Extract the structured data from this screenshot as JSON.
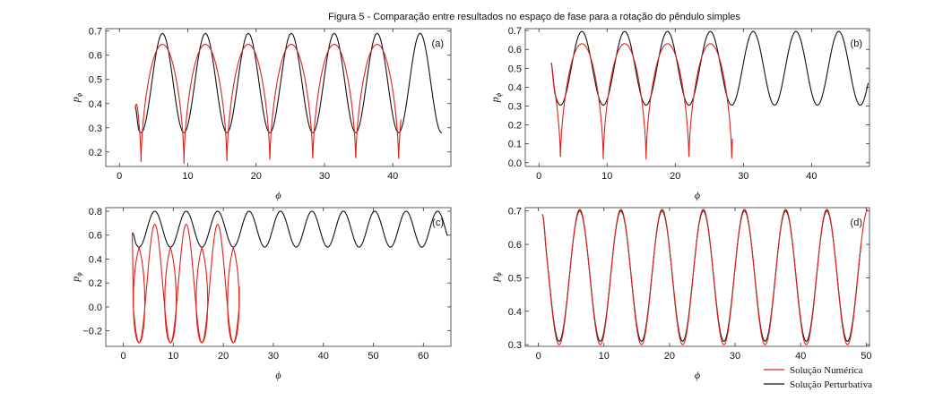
{
  "figure": {
    "title": "Figura 5 - Comparação entre resultados no espaço de fase para a rotação do pêndulo simples"
  },
  "legend": {
    "items": [
      {
        "label": "Solução Numérica",
        "color": "#e0201b"
      },
      {
        "label": "Solução Perturbativa",
        "color": "#111111"
      }
    ]
  },
  "chart_data": [
    {
      "type": "line",
      "panel": "(a)",
      "xlabel": "ϕ",
      "ylabel": "pϕ",
      "xlim": [
        -2,
        48.5
      ],
      "ylim": [
        0.14,
        0.71
      ],
      "xticks": [
        0,
        10,
        20,
        30,
        40
      ],
      "yticks": [
        0.2,
        0.3,
        0.4,
        0.5,
        0.6,
        0.7
      ],
      "series": [
        {
          "name": "Solução Perturbativa",
          "color": "#111111",
          "x_range": [
            2.3,
            47.2
          ],
          "peak_x": 6.3,
          "period": 6.283,
          "max": 0.69,
          "min": 0.28,
          "start": 0.39
        },
        {
          "name": "Solução Numérica",
          "color": "#e0201b",
          "x_range": [
            2.3,
            41.2
          ],
          "peak_x": 6.3,
          "period": 6.283,
          "max": 0.645,
          "min": 0.145,
          "start": 0.38
        }
      ]
    },
    {
      "type": "line",
      "panel": "(b)",
      "xlabel": "ϕ",
      "ylabel": "pϕ",
      "xlim": [
        -2,
        48.5
      ],
      "ylim": [
        -0.02,
        0.71
      ],
      "xticks": [
        0,
        10,
        20,
        30,
        40
      ],
      "yticks": [
        0.0,
        0.1,
        0.2,
        0.3,
        0.4,
        0.5,
        0.6,
        0.7
      ],
      "series": [
        {
          "name": "Solução Perturbativa",
          "color": "#111111",
          "x_range": [
            1.8,
            48.3
          ],
          "peak_x": 6.3,
          "period": 6.283,
          "max": 0.695,
          "min": 0.305,
          "start": 0.53
        },
        {
          "name": "Solução Numérica",
          "color": "#e0201b",
          "x_range": [
            1.8,
            28.4
          ],
          "peak_x": 6.3,
          "period": 6.283,
          "max": 0.63,
          "min": 0.0,
          "start": 0.53
        }
      ]
    },
    {
      "type": "line",
      "panel": "(c)",
      "xlabel": "ϕ",
      "ylabel": "pϕ",
      "xlim": [
        -3.5,
        65.5
      ],
      "ylim": [
        -0.33,
        0.83
      ],
      "xticks": [
        0,
        10,
        20,
        30,
        40,
        50,
        60
      ],
      "yticks": [
        -0.2,
        0.0,
        0.2,
        0.4,
        0.6,
        0.8
      ],
      "series": [
        {
          "name": "Solução Perturbativa",
          "color": "#111111",
          "x_range": [
            1.8,
            64.8
          ],
          "peak_x": 6.3,
          "period": 6.283,
          "max": 0.8,
          "min": 0.5,
          "start": 0.62
        },
        {
          "name": "Solução Numérica",
          "color": "#e0201b",
          "x_range": [
            1.8,
            23.2
          ],
          "peak_x": 6.3,
          "period": 6.283,
          "max": 0.69,
          "min": -0.3,
          "start": 0.62,
          "end": 0.17
        }
      ]
    },
    {
      "type": "line",
      "panel": "(d)",
      "xlabel": "ϕ",
      "ylabel": "pϕ",
      "xlim": [
        -2,
        50.5
      ],
      "ylim": [
        0.295,
        0.71
      ],
      "xticks": [
        0,
        10,
        20,
        30,
        40,
        50
      ],
      "yticks": [
        0.3,
        0.4,
        0.5,
        0.6,
        0.7
      ],
      "series": [
        {
          "name": "Solução Perturbativa",
          "color": "#111111",
          "x_range": [
            0.6,
            49.2
          ],
          "peak_x": 6.3,
          "period": 6.283,
          "max": 0.7,
          "min": 0.31,
          "start": 0.69
        },
        {
          "name": "Solução Numérica",
          "color": "#e0201b",
          "x_range": [
            0.6,
            50.2
          ],
          "peak_x": 6.3,
          "period": 6.283,
          "max": 0.705,
          "min": 0.3,
          "start": 0.69
        }
      ]
    }
  ]
}
